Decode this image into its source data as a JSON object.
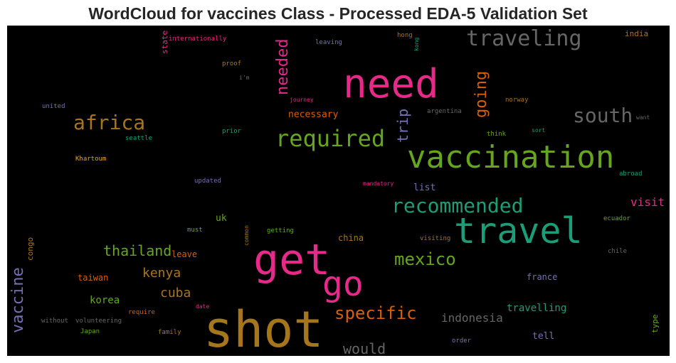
{
  "chart_data": {
    "type": "wordcloud",
    "title": "WordCloud for vaccines Class - Processed EDA-5 Validation Set",
    "background": "#000000",
    "words": [
      {
        "text": "shot",
        "color": "#a6761d"
      },
      {
        "text": "need",
        "color": "#e7298a"
      },
      {
        "text": "get",
        "color": "#e7298a"
      },
      {
        "text": "travel",
        "color": "#1b9e77"
      },
      {
        "text": "vaccination",
        "color": "#66a61e"
      },
      {
        "text": "go",
        "color": "#e7298a"
      },
      {
        "text": "traveling",
        "color": "#666666"
      },
      {
        "text": "required",
        "color": "#66a61e"
      },
      {
        "text": "recommended",
        "color": "#1b9e77"
      },
      {
        "text": "south",
        "color": "#666666"
      },
      {
        "text": "africa",
        "color": "#a6761d"
      },
      {
        "text": "needed",
        "color": "#e7298a"
      },
      {
        "text": "going",
        "color": "#d95f02"
      },
      {
        "text": "mexico",
        "color": "#66a61e"
      },
      {
        "text": "specific",
        "color": "#d95f02"
      },
      {
        "text": "vaccine",
        "color": "#7570b3"
      },
      {
        "text": "thailand",
        "color": "#66a61e"
      },
      {
        "text": "trip",
        "color": "#7570b3"
      },
      {
        "text": "would",
        "color": "#666666"
      },
      {
        "text": "kenya",
        "color": "#a6761d"
      },
      {
        "text": "cuba",
        "color": "#a6761d"
      },
      {
        "text": "visit",
        "color": "#e7298a"
      },
      {
        "text": "indonesia",
        "color": "#666666"
      },
      {
        "text": "travelling",
        "color": "#1b9e77"
      },
      {
        "text": "korea",
        "color": "#66a61e"
      },
      {
        "text": "necessary",
        "color": "#d95f02"
      },
      {
        "text": "list",
        "color": "#7570b3"
      },
      {
        "text": "uk",
        "color": "#66a61e"
      },
      {
        "text": "tell",
        "color": "#7570b3"
      },
      {
        "text": "taiwan",
        "color": "#d95f02"
      },
      {
        "text": "china",
        "color": "#a6761d"
      },
      {
        "text": "france",
        "color": "#7570b3"
      },
      {
        "text": "leave",
        "color": "#d95f02"
      },
      {
        "text": "india",
        "color": "#a6761d"
      },
      {
        "text": "congo",
        "color": "#a6761d"
      },
      {
        "text": "type",
        "color": "#66a61e"
      },
      {
        "text": "state",
        "color": "#e7298a"
      },
      {
        "text": "internationally",
        "color": "#e7298a"
      },
      {
        "text": "leaving",
        "color": "#7570b3"
      },
      {
        "text": "hong",
        "color": "#a6761d"
      },
      {
        "text": "kong",
        "color": "#1b9e77"
      },
      {
        "text": "proof",
        "color": "#a6761d"
      },
      {
        "text": "i'm",
        "color": "#666666"
      },
      {
        "text": "journey",
        "color": "#e7298a"
      },
      {
        "text": "norway",
        "color": "#a6761d"
      },
      {
        "text": "united",
        "color": "#7570b3"
      },
      {
        "text": "argentina",
        "color": "#666666"
      },
      {
        "text": "want",
        "color": "#666666"
      },
      {
        "text": "seattle",
        "color": "#1b9e77"
      },
      {
        "text": "prior",
        "color": "#1b9e77"
      },
      {
        "text": "think",
        "color": "#66a61e"
      },
      {
        "text": "sort",
        "color": "#1b9e77"
      },
      {
        "text": "Khartoum",
        "color": "#e6ab02"
      },
      {
        "text": "updated",
        "color": "#7570b3"
      },
      {
        "text": "mandatory",
        "color": "#e7298a"
      },
      {
        "text": "abroad",
        "color": "#1b9e77"
      },
      {
        "text": "ecuador",
        "color": "#66a61e"
      },
      {
        "text": "must",
        "color": "#66a61e"
      },
      {
        "text": "common",
        "color": "#a6761d"
      },
      {
        "text": "getting",
        "color": "#66a61e"
      },
      {
        "text": "visiting",
        "color": "#a6761d"
      },
      {
        "text": "chile",
        "color": "#666666"
      },
      {
        "text": "without",
        "color": "#666666"
      },
      {
        "text": "volunteering",
        "color": "#666666"
      },
      {
        "text": "require",
        "color": "#d95f02"
      },
      {
        "text": "date",
        "color": "#e7298a"
      },
      {
        "text": "Japan",
        "color": "#66a61e"
      },
      {
        "text": "family",
        "color": "#a6761d"
      },
      {
        "text": "order",
        "color": "#7570b3"
      }
    ]
  }
}
